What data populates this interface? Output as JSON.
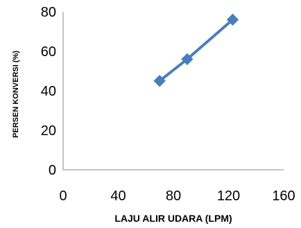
{
  "chart_data": {
    "type": "line",
    "title": "",
    "xlabel": "LAJU ALIR UDARA (LPM)",
    "ylabel": "PERSEN KONVERSI (%)",
    "xlim": [
      0,
      160
    ],
    "ylim": [
      0,
      80
    ],
    "xticks": [
      "0",
      "40",
      "80",
      "120",
      "160"
    ],
    "yticks": [
      "0",
      "20",
      "40",
      "60",
      "80"
    ],
    "grid": false,
    "legend": "none",
    "series": [
      {
        "color": "#4a7ebb",
        "marker": "diamond",
        "points": [
          {
            "x": 70,
            "y": 45
          },
          {
            "x": 90,
            "y": 56
          },
          {
            "x": 123,
            "y": 76
          }
        ]
      }
    ]
  }
}
